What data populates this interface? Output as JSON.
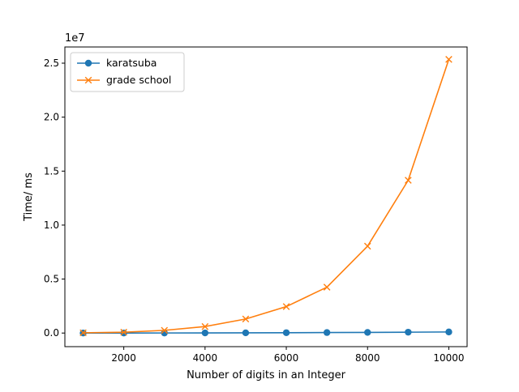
{
  "chart_data": {
    "type": "line",
    "title": "",
    "xlabel": "Number of digits in an Integer",
    "ylabel": "Time/ ms",
    "y_scale_label": "1e7",
    "x": [
      1000,
      2000,
      3000,
      4000,
      5000,
      6000,
      7000,
      8000,
      9000,
      10000
    ],
    "xlim": [
      550,
      10450
    ],
    "ylim": [
      -1260000,
      26500000
    ],
    "x_ticks": [
      2000,
      4000,
      6000,
      8000,
      10000
    ],
    "x_tick_labels": [
      "2000",
      "4000",
      "6000",
      "8000",
      "10000"
    ],
    "y_ticks": [
      0,
      5000000,
      10000000,
      15000000,
      20000000,
      25000000
    ],
    "y_tick_labels": [
      "0.0",
      "0.5",
      "1.0",
      "1.5",
      "2.0",
      "2.5"
    ],
    "grid": false,
    "legend_position": "top-left",
    "series": [
      {
        "name": "karatsuba",
        "marker": "circle",
        "color": "#1f77b4",
        "values": [
          1000,
          3000,
          6000,
          12000,
          20000,
          32000,
          45000,
          60000,
          80000,
          100000
        ]
      },
      {
        "name": "grade school",
        "marker": "x",
        "color": "#ff7f0e",
        "values": [
          25000,
          80000,
          250000,
          600000,
          1300000,
          2450000,
          4250000,
          8050000,
          14150000,
          25350000
        ]
      }
    ]
  }
}
